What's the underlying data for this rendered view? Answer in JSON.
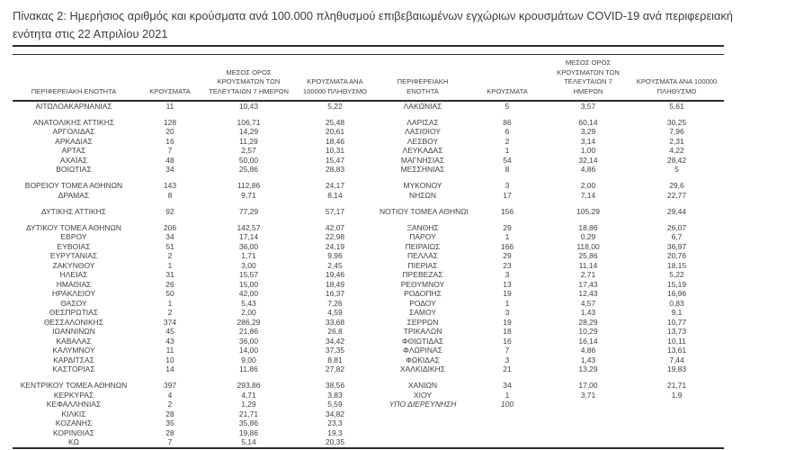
{
  "title": "Πίνακας 2: Ημερήσιος αριθμός και κρούσματα ανά 100.000 πληθυσμού επιβεβαιωμένων εγχώριων κρουσμάτων COVID-19 ανά περιφερειακή ενότητα στις 22 Απριλίου 2021",
  "table": {
    "headers": {
      "region": "ΠΕΡΙΦΕΡΕΙΑΚΗ ΕΝΟΤΗΤΑ",
      "cases": "ΚΡΟΥΣΜΑΤΑ",
      "avg7": "ΜΕΣΟΣ ΟΡΟΣ ΚΡΟΥΣΜΑΤΩΝ ΤΩΝ ΤΕΛΕΥΤΑΙΩΝ 7 ΗΜΕΡΩΝ",
      "per100k": "ΚΡΟΥΣΜΑΤΑ ΑΝΑ 100000 ΠΛΗΘΥΣΜΟ"
    },
    "rows": [
      {
        "l": [
          "ΑΙΤΩΛΟΑΚΑΡΝΑΝΙΑΣ",
          "11",
          "10,43",
          "5,22"
        ],
        "r": [
          "ΛΑΚΩΝΙΑΣ",
          "5",
          "3,57",
          "5,61"
        ]
      },
      {
        "blank": true
      },
      {
        "l": [
          "ΑΝΑΤΟΛΙΚΗΣ ΑΤΤΙΚΗΣ",
          "128",
          "106,71",
          "25,48"
        ],
        "r": [
          "ΛΑΡΙΣΑΣ",
          "86",
          "60,14",
          "30,25"
        ]
      },
      {
        "l": [
          "ΑΡΓΟΛΙΔΑΣ",
          "20",
          "14,29",
          "20,61"
        ],
        "r": [
          "ΛΑΣΙΘΙΟΥ",
          "6",
          "3,29",
          "7,96"
        ]
      },
      {
        "l": [
          "ΑΡΚΑΔΙΑΣ",
          "16",
          "11,29",
          "18,46"
        ],
        "r": [
          "ΛΕΣΒΟΥ",
          "2",
          "3,14",
          "2,31"
        ]
      },
      {
        "l": [
          "ΑΡΤΑΣ",
          "7",
          "2,57",
          "10,31"
        ],
        "r": [
          "ΛΕΥΚΑΔΑΣ",
          "1",
          "1,00",
          "4,22"
        ]
      },
      {
        "l": [
          "ΑΧΑΪΑΣ",
          "48",
          "50,00",
          "15,47"
        ],
        "r": [
          "ΜΑΓΝΗΣΙΑΣ",
          "54",
          "32,14",
          "28,42"
        ]
      },
      {
        "l": [
          "ΒΟΙΩΤΙΑΣ",
          "34",
          "25,86",
          "28,83"
        ],
        "r": [
          "ΜΕΣΣΗΝΙΑΣ",
          "8",
          "4,86",
          "5"
        ]
      },
      {
        "blank": true
      },
      {
        "l": [
          "ΒΟΡΕΙΟΥ ΤΟΜΕΑ ΑΘΗΝΩΝ",
          "143",
          "112,86",
          "24,17"
        ],
        "r": [
          "ΜΥΚΟΝΟΥ",
          "3",
          "2,00",
          "29,6"
        ]
      },
      {
        "l": [
          "ΔΡΑΜΑΣ",
          "8",
          "9,71",
          "8,14"
        ],
        "r": [
          "ΝΗΣΩΝ",
          "17",
          "7,14",
          "22,77"
        ]
      },
      {
        "blank": true
      },
      {
        "l": [
          "ΔΥΤΙΚΗΣ ΑΤΤΙΚΗΣ",
          "92",
          "77,29",
          "57,17"
        ],
        "r": [
          "ΝΟΤΙΟΥ ΤΟΜΕΑ ΑΘΗΝΩΝ",
          "156",
          "105,29",
          "29,44"
        ]
      },
      {
        "blank": true
      },
      {
        "l": [
          "ΔΥΤΙΚΟΥ ΤΟΜΕΑ ΑΘΗΝΩΝ",
          "206",
          "142,57",
          "42,07"
        ],
        "r": [
          "ΞΑΝΘΗΣ",
          "29",
          "18,86",
          "26,07"
        ]
      },
      {
        "l": [
          "ΕΒΡΟΥ",
          "34",
          "17,14",
          "22,98"
        ],
        "r": [
          "ΠΑΡΟΥ",
          "1",
          "0,29",
          "6,7"
        ]
      },
      {
        "l": [
          "ΕΥΒΟΙΑΣ",
          "51",
          "36,00",
          "24,19"
        ],
        "r": [
          "ΠΕΙΡΑΙΩΣ",
          "166",
          "118,00",
          "36,97"
        ]
      },
      {
        "l": [
          "ΕΥΡΥΤΑΝΙΑΣ",
          "2",
          "1,71",
          "9,96"
        ],
        "r": [
          "ΠΕΛΛΑΣ",
          "29",
          "25,86",
          "20,76"
        ]
      },
      {
        "l": [
          "ΖΑΚΥΝΘΟΥ",
          "1",
          "3,00",
          "2,45"
        ],
        "r": [
          "ΠΙΕΡΙΑΣ",
          "23",
          "11,14",
          "18,15"
        ]
      },
      {
        "l": [
          "ΗΛΕΙΑΣ",
          "31",
          "15,57",
          "19,46"
        ],
        "r": [
          "ΠΡΕΒΕΖΑΣ",
          "3",
          "2,71",
          "5,22"
        ]
      },
      {
        "l": [
          "ΗΜΑΘΙΑΣ",
          "26",
          "15,00",
          "18,49"
        ],
        "r": [
          "ΡΕΘΥΜΝΟΥ",
          "13",
          "17,43",
          "15,19"
        ]
      },
      {
        "l": [
          "ΗΡΑΚΛΕΙΟΥ",
          "50",
          "42,00",
          "16,37"
        ],
        "r": [
          "ΡΟΔΟΠΗΣ",
          "19",
          "12,43",
          "16,96"
        ]
      },
      {
        "l": [
          "ΘΑΣΟΥ",
          "1",
          "5,43",
          "7,26"
        ],
        "r": [
          "ΡΟΔΟΥ",
          "1",
          "4,57",
          "0,83"
        ]
      },
      {
        "l": [
          "ΘΕΣΠΡΩΤΙΑΣ",
          "2",
          "2,00",
          "4,59"
        ],
        "r": [
          "ΣΑΜΟΥ",
          "3",
          "1,43",
          "9,1"
        ]
      },
      {
        "l": [
          "ΘΕΣΣΑΛΟΝΙΚΗΣ",
          "374",
          "286,29",
          "33,68"
        ],
        "r": [
          "ΣΕΡΡΩΝ",
          "19",
          "28,29",
          "10,77"
        ]
      },
      {
        "l": [
          "ΙΩΑΝΝΙΝΩΝ",
          "45",
          "21,86",
          "26,8"
        ],
        "r": [
          "ΤΡΙΚΑΛΩΝ",
          "18",
          "10,29",
          "13,73"
        ]
      },
      {
        "l": [
          "ΚΑΒΑΛΑΣ",
          "43",
          "36,00",
          "34,42"
        ],
        "r": [
          "ΦΘΙΩΤΙΔΑΣ",
          "16",
          "16,14",
          "10,11"
        ]
      },
      {
        "l": [
          "ΚΑΛΥΜΝΟΥ",
          "11",
          "14,00",
          "37,35"
        ],
        "r": [
          "ΦΛΩΡΙΝΑΣ",
          "7",
          "4,86",
          "13,61"
        ]
      },
      {
        "l": [
          "ΚΑΡΔΙΤΣΑΣ",
          "10",
          "9,00",
          "8,81"
        ],
        "r": [
          "ΦΩΚΙΔΑΣ",
          "3",
          "1,43",
          "7,44"
        ]
      },
      {
        "l": [
          "ΚΑΣΤΟΡΙΑΣ",
          "14",
          "11,86",
          "27,82"
        ],
        "r": [
          "ΧΑΛΚΙΔΙΚΗΣ",
          "21",
          "13,29",
          "19,83"
        ]
      },
      {
        "blank": true
      },
      {
        "l": [
          "ΚΕΝΤΡΙΚΟΥ ΤΟΜΕΑ ΑΘΗΝΩΝ",
          "397",
          "293,86",
          "38,56"
        ],
        "r": [
          "ΧΑΝΙΩΝ",
          "34",
          "17,00",
          "21,71"
        ]
      },
      {
        "l": [
          "ΚΕΡΚΥΡΑΣ",
          "4",
          "4,71",
          "3,83"
        ],
        "r": [
          "ΧΙΟΥ",
          "1",
          "3,71",
          "1,9"
        ]
      },
      {
        "l": [
          "ΚΕΦΑΛΛΗΝΙΑΣ",
          "2",
          "1,29",
          "5,59"
        ],
        "r": [
          "ΥΠΟ ΔΙΕΡΕΥΝΗΣΗ",
          "100",
          "",
          ""
        ],
        "r_italic": true
      },
      {
        "l": [
          "ΚΙΛΚΙΣ",
          "28",
          "21,71",
          "34,82"
        ],
        "r": [
          "",
          "",
          "",
          ""
        ]
      },
      {
        "l": [
          "ΚΟΖΑΝΗΣ",
          "35",
          "35,86",
          "23,3"
        ],
        "r": [
          "",
          "",
          "",
          ""
        ]
      },
      {
        "l": [
          "ΚΟΡΙΝΘΙΑΣ",
          "28",
          "19,86",
          "19,3"
        ],
        "r": [
          "",
          "",
          "",
          ""
        ]
      },
      {
        "l": [
          "ΚΩ",
          "7",
          "5,14",
          "20,35"
        ],
        "r": [
          "",
          "",
          "",
          ""
        ]
      }
    ]
  },
  "colors": {
    "text": "#414141",
    "border": "#2b2b2b",
    "background": "#ffffff"
  }
}
